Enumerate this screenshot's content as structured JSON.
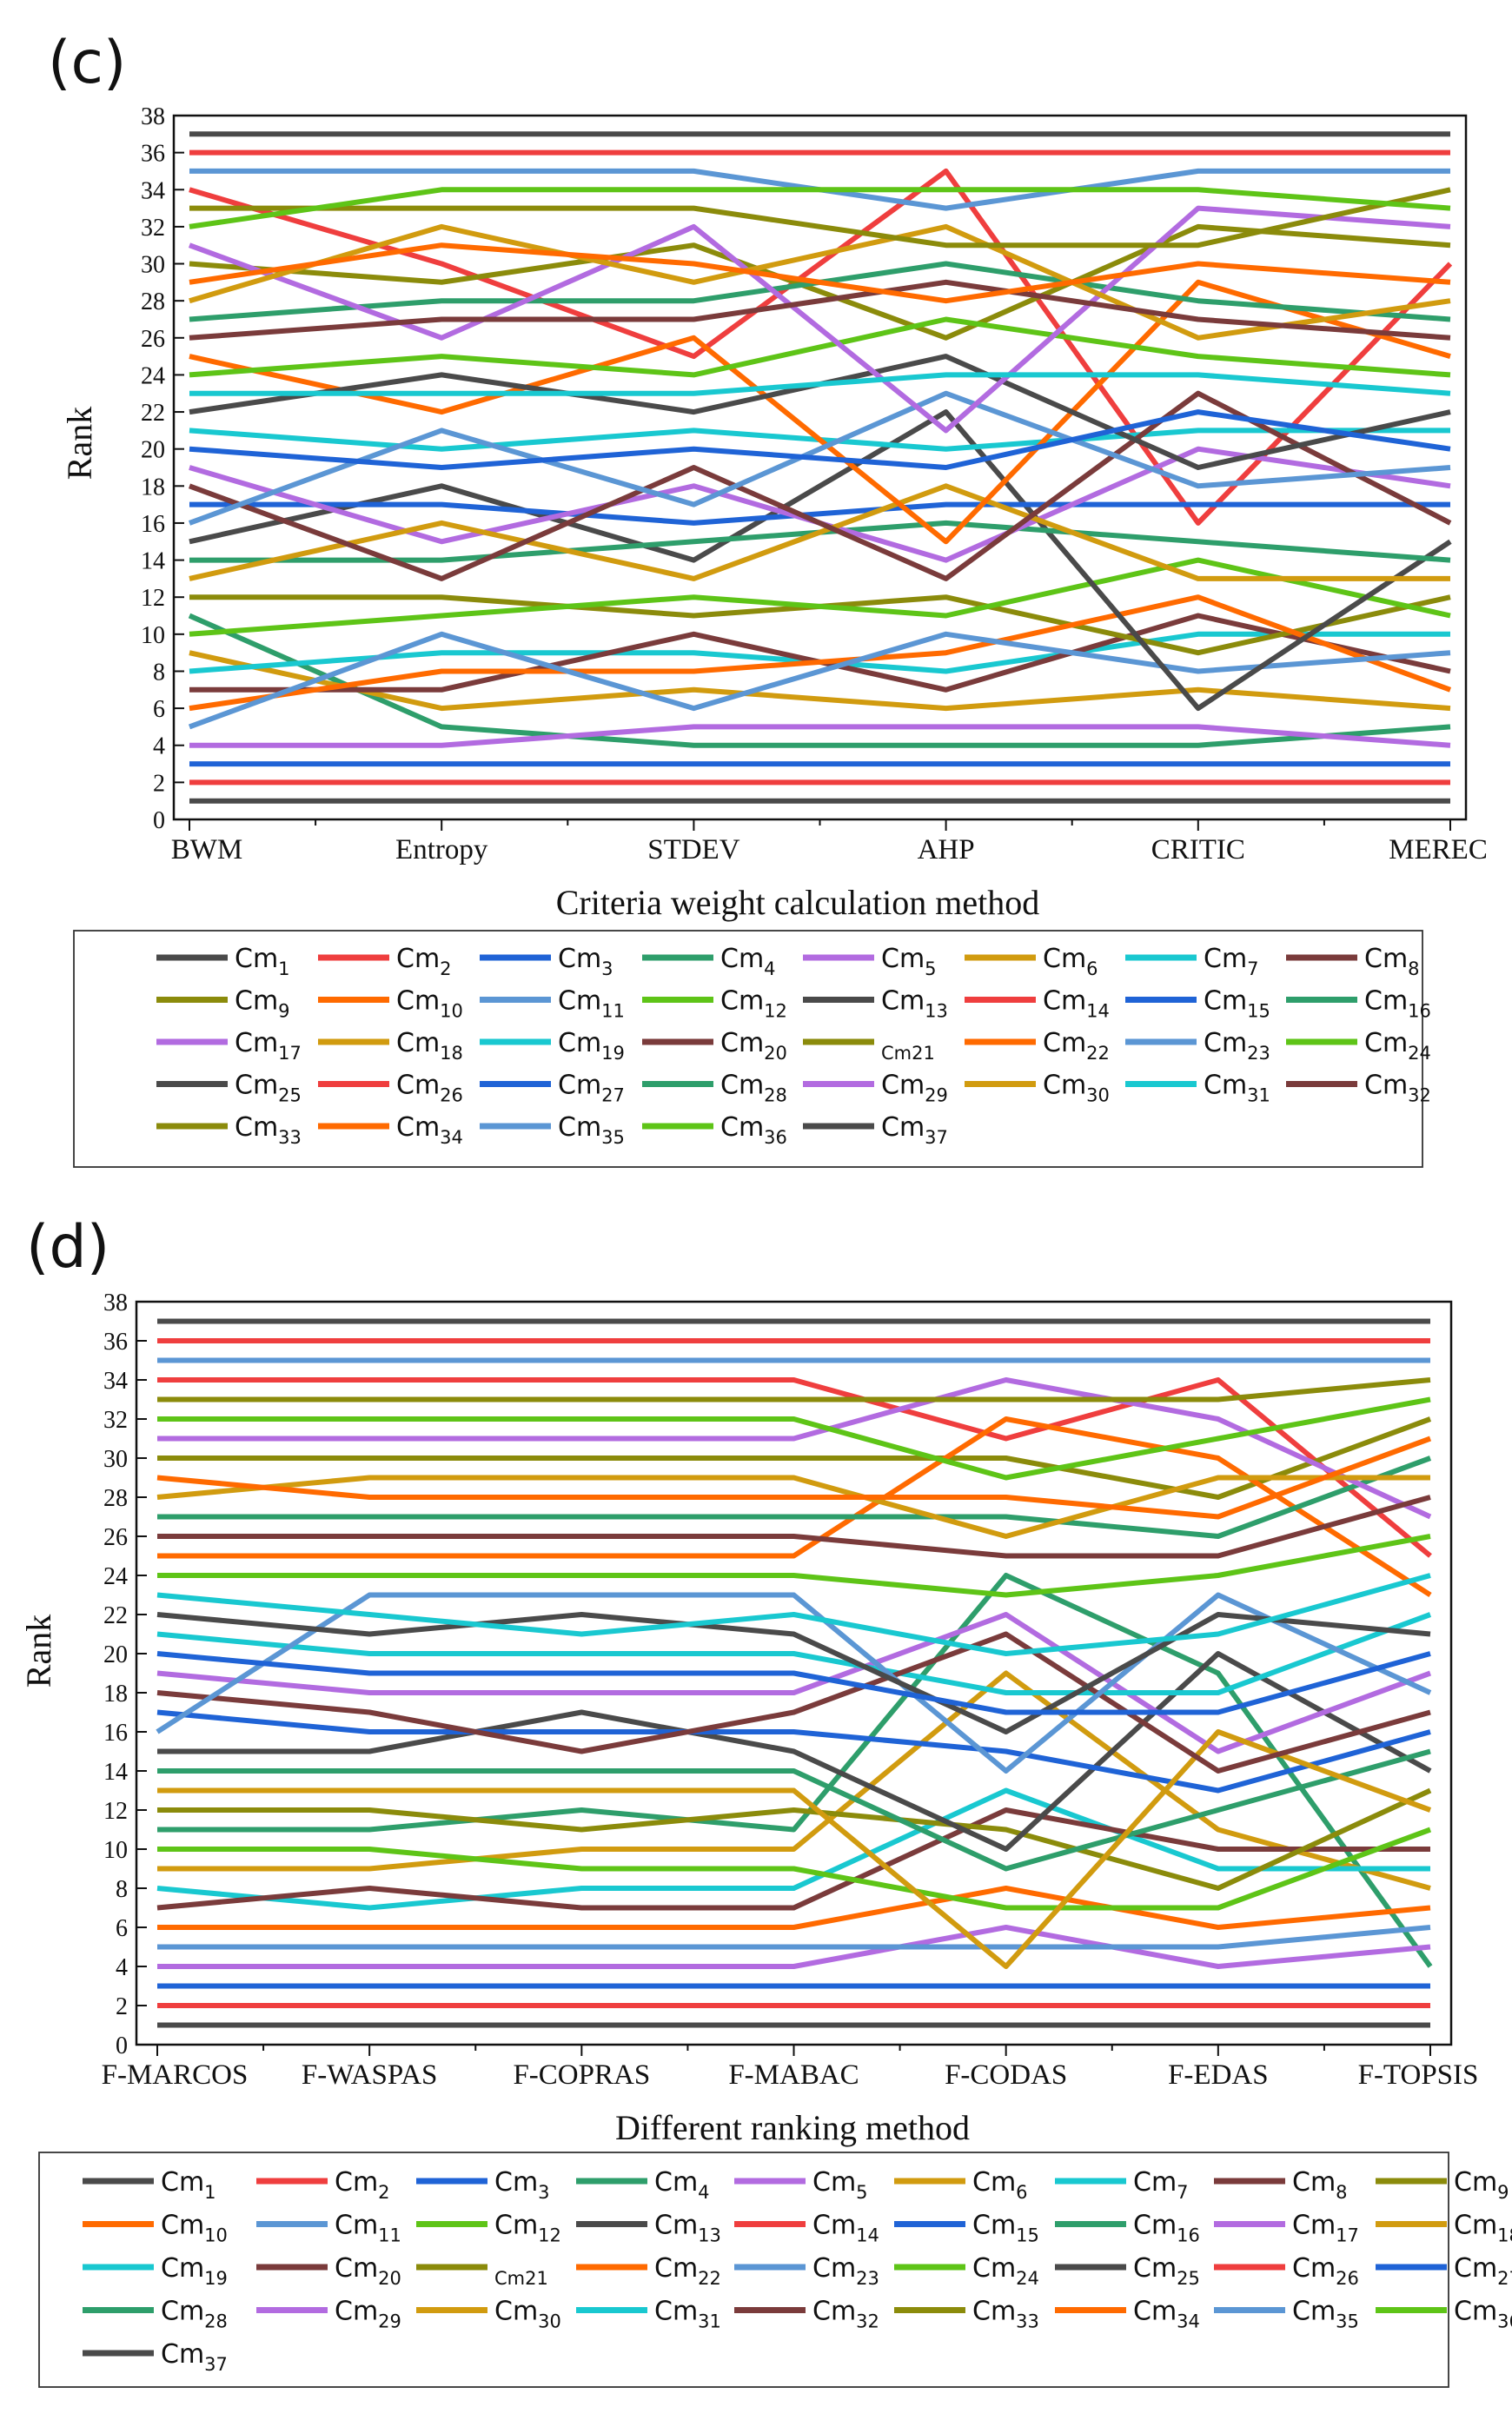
{
  "chart_data": [
    {
      "type": "line",
      "panel_label": "(c)",
      "xlabel": "Criteria weight calculation method",
      "ylabel": "Rank",
      "categories": [
        "BWM",
        "Entropy",
        "STDEV",
        "AHP",
        "CRITIC",
        "MEREC"
      ],
      "ylim": [
        0,
        38
      ],
      "yticks": [
        0,
        2,
        4,
        6,
        8,
        10,
        12,
        14,
        16,
        18,
        20,
        22,
        24,
        26,
        28,
        30,
        32,
        34,
        36,
        38
      ],
      "legend_location": "below",
      "series": [
        {
          "name": "Cm1",
          "base": "Cm",
          "sub": "1",
          "values": [
            1,
            1,
            1,
            1,
            1,
            1
          ]
        },
        {
          "name": "Cm2",
          "base": "Cm",
          "sub": "2",
          "values": [
            2,
            2,
            2,
            2,
            2,
            2
          ]
        },
        {
          "name": "Cm3",
          "base": "Cm",
          "sub": "3",
          "values": [
            3,
            3,
            3,
            3,
            3,
            3
          ]
        },
        {
          "name": "Cm4",
          "base": "Cm",
          "sub": "4",
          "values": [
            11,
            5,
            4,
            4,
            4,
            5
          ]
        },
        {
          "name": "Cm5",
          "base": "Cm",
          "sub": "5",
          "values": [
            4,
            4,
            5,
            5,
            5,
            4
          ]
        },
        {
          "name": "Cm6",
          "base": "Cm",
          "sub": "6",
          "values": [
            9,
            6,
            7,
            6,
            7,
            6
          ]
        },
        {
          "name": "Cm7",
          "base": "Cm",
          "sub": "7",
          "values": [
            8,
            9,
            9,
            8,
            10,
            10
          ]
        },
        {
          "name": "Cm8",
          "base": "Cm",
          "sub": "8",
          "values": [
            7,
            7,
            10,
            7,
            11,
            8
          ]
        },
        {
          "name": "Cm9",
          "base": "Cm",
          "sub": "9",
          "values": [
            12,
            12,
            11,
            12,
            9,
            12
          ]
        },
        {
          "name": "Cm10",
          "base": "Cm",
          "sub": "10",
          "values": [
            6,
            8,
            8,
            9,
            12,
            7
          ]
        },
        {
          "name": "Cm11",
          "base": "Cm",
          "sub": "11",
          "values": [
            5,
            10,
            6,
            10,
            8,
            9
          ]
        },
        {
          "name": "Cm12",
          "base": "Cm",
          "sub": "12",
          "values": [
            10,
            11,
            12,
            11,
            14,
            11
          ]
        },
        {
          "name": "Cm13",
          "base": "Cm",
          "sub": "13",
          "values": [
            15,
            18,
            14,
            22,
            6,
            15
          ]
        },
        {
          "name": "Cm14",
          "base": "Cm",
          "sub": "14",
          "values": [
            34,
            30,
            25,
            35,
            16,
            30
          ]
        },
        {
          "name": "Cm15",
          "base": "Cm",
          "sub": "15",
          "values": [
            17,
            17,
            16,
            17,
            17,
            17
          ]
        },
        {
          "name": "Cm16",
          "base": "Cm",
          "sub": "16",
          "values": [
            14,
            14,
            15,
            16,
            15,
            14
          ]
        },
        {
          "name": "Cm17",
          "base": "Cm",
          "sub": "17",
          "values": [
            19,
            15,
            18,
            14,
            20,
            18
          ]
        },
        {
          "name": "Cm18",
          "base": "Cm",
          "sub": "18",
          "values": [
            13,
            16,
            13,
            18,
            13,
            13
          ]
        },
        {
          "name": "Cm19",
          "base": "Cm",
          "sub": "19",
          "values": [
            21,
            20,
            21,
            20,
            21,
            21
          ]
        },
        {
          "name": "Cm20",
          "base": "Cm",
          "sub": "20",
          "values": [
            18,
            13,
            19,
            13,
            23,
            16
          ]
        },
        {
          "name": "Cm21",
          "base": "Cm21",
          "sub": "",
          "values": [
            30,
            29,
            31,
            26,
            32,
            31
          ]
        },
        {
          "name": "Cm22",
          "base": "Cm",
          "sub": "22",
          "values": [
            25,
            22,
            26,
            15,
            29,
            25
          ]
        },
        {
          "name": "Cm23",
          "base": "Cm",
          "sub": "23",
          "values": [
            16,
            21,
            17,
            23,
            18,
            19
          ]
        },
        {
          "name": "Cm24",
          "base": "Cm",
          "sub": "24",
          "values": [
            24,
            25,
            24,
            27,
            25,
            24
          ]
        },
        {
          "name": "Cm25",
          "base": "Cm",
          "sub": "25",
          "values": [
            22,
            24,
            22,
            25,
            19,
            22
          ]
        },
        {
          "name": "Cm26",
          "base": "Cm",
          "sub": "26",
          "values": [
            36,
            36,
            36,
            36,
            36,
            36
          ]
        },
        {
          "name": "Cm27",
          "base": "Cm",
          "sub": "27",
          "values": [
            20,
            19,
            20,
            19,
            22,
            20
          ]
        },
        {
          "name": "Cm28",
          "base": "Cm",
          "sub": "28",
          "values": [
            27,
            28,
            28,
            30,
            28,
            27
          ]
        },
        {
          "name": "Cm29",
          "base": "Cm",
          "sub": "29",
          "values": [
            31,
            26,
            32,
            21,
            33,
            32
          ]
        },
        {
          "name": "Cm30",
          "base": "Cm",
          "sub": "30",
          "values": [
            28,
            32,
            29,
            32,
            26,
            28
          ]
        },
        {
          "name": "Cm31",
          "base": "Cm",
          "sub": "31",
          "values": [
            23,
            23,
            23,
            24,
            24,
            23
          ]
        },
        {
          "name": "Cm32",
          "base": "Cm",
          "sub": "32",
          "values": [
            26,
            27,
            27,
            29,
            27,
            26
          ]
        },
        {
          "name": "Cm33",
          "base": "Cm",
          "sub": "33",
          "values": [
            33,
            33,
            33,
            31,
            31,
            34
          ]
        },
        {
          "name": "Cm34",
          "base": "Cm",
          "sub": "34",
          "values": [
            29,
            31,
            30,
            28,
            30,
            29
          ]
        },
        {
          "name": "Cm35",
          "base": "Cm",
          "sub": "35",
          "values": [
            35,
            35,
            35,
            33,
            35,
            35
          ]
        },
        {
          "name": "Cm36",
          "base": "Cm",
          "sub": "36",
          "values": [
            32,
            34,
            34,
            34,
            34,
            33
          ]
        },
        {
          "name": "Cm37",
          "base": "Cm",
          "sub": "37",
          "values": [
            37,
            37,
            37,
            37,
            37,
            37
          ]
        }
      ]
    },
    {
      "type": "line",
      "panel_label": "(d)",
      "xlabel": "Different ranking method",
      "ylabel": "Rank",
      "categories": [
        "F-MARCOS",
        "F-WASPAS",
        "F-COPRAS",
        "F-MABAC",
        "F-CODAS",
        "F-EDAS",
        "F-TOPSIS"
      ],
      "ylim": [
        0,
        38
      ],
      "yticks": [
        0,
        2,
        4,
        6,
        8,
        10,
        12,
        14,
        16,
        18,
        20,
        22,
        24,
        26,
        28,
        30,
        32,
        34,
        36,
        38
      ],
      "legend_location": "below",
      "series": [
        {
          "name": "Cm1",
          "base": "Cm",
          "sub": "1",
          "values": [
            1,
            1,
            1,
            1,
            1,
            1,
            1
          ]
        },
        {
          "name": "Cm2",
          "base": "Cm",
          "sub": "2",
          "values": [
            2,
            2,
            2,
            2,
            2,
            2,
            2
          ]
        },
        {
          "name": "Cm3",
          "base": "Cm",
          "sub": "3",
          "values": [
            3,
            3,
            3,
            3,
            3,
            3,
            3
          ]
        },
        {
          "name": "Cm4",
          "base": "Cm",
          "sub": "4",
          "values": [
            11,
            11,
            12,
            11,
            24,
            19,
            4
          ]
        },
        {
          "name": "Cm5",
          "base": "Cm",
          "sub": "5",
          "values": [
            4,
            4,
            4,
            4,
            6,
            4,
            5
          ]
        },
        {
          "name": "Cm6",
          "base": "Cm",
          "sub": "6",
          "values": [
            9,
            9,
            10,
            10,
            19,
            11,
            8
          ]
        },
        {
          "name": "Cm7",
          "base": "Cm",
          "sub": "7",
          "values": [
            8,
            7,
            8,
            8,
            13,
            9,
            9
          ]
        },
        {
          "name": "Cm8",
          "base": "Cm",
          "sub": "8",
          "values": [
            7,
            8,
            7,
            7,
            12,
            10,
            10
          ]
        },
        {
          "name": "Cm9",
          "base": "Cm",
          "sub": "9",
          "values": [
            12,
            12,
            11,
            12,
            11,
            8,
            13
          ]
        },
        {
          "name": "Cm10",
          "base": "Cm",
          "sub": "10",
          "values": [
            6,
            6,
            6,
            6,
            8,
            6,
            7
          ]
        },
        {
          "name": "Cm11",
          "base": "Cm",
          "sub": "11",
          "values": [
            5,
            5,
            5,
            5,
            5,
            5,
            6
          ]
        },
        {
          "name": "Cm12",
          "base": "Cm",
          "sub": "12",
          "values": [
            10,
            10,
            9,
            9,
            7,
            7,
            11
          ]
        },
        {
          "name": "Cm13",
          "base": "Cm",
          "sub": "13",
          "values": [
            15,
            15,
            17,
            15,
            10,
            20,
            14
          ]
        },
        {
          "name": "Cm14",
          "base": "Cm",
          "sub": "14",
          "values": [
            34,
            34,
            34,
            34,
            31,
            34,
            25
          ]
        },
        {
          "name": "Cm15",
          "base": "Cm",
          "sub": "15",
          "values": [
            17,
            16,
            16,
            16,
            15,
            13,
            16
          ]
        },
        {
          "name": "Cm16",
          "base": "Cm",
          "sub": "16",
          "values": [
            14,
            14,
            14,
            14,
            9,
            12,
            15
          ]
        },
        {
          "name": "Cm17",
          "base": "Cm",
          "sub": "17",
          "values": [
            19,
            18,
            18,
            18,
            22,
            15,
            19
          ]
        },
        {
          "name": "Cm18",
          "base": "Cm",
          "sub": "18",
          "values": [
            13,
            13,
            13,
            13,
            4,
            16,
            12
          ]
        },
        {
          "name": "Cm19",
          "base": "Cm",
          "sub": "19",
          "values": [
            21,
            20,
            20,
            20,
            18,
            18,
            22
          ]
        },
        {
          "name": "Cm20",
          "base": "Cm",
          "sub": "20",
          "values": [
            18,
            17,
            15,
            17,
            21,
            14,
            17
          ]
        },
        {
          "name": "Cm21",
          "base": "Cm21",
          "sub": "",
          "values": [
            30,
            30,
            30,
            30,
            30,
            28,
            32
          ]
        },
        {
          "name": "Cm22",
          "base": "Cm",
          "sub": "22",
          "values": [
            25,
            25,
            25,
            25,
            32,
            30,
            23
          ]
        },
        {
          "name": "Cm23",
          "base": "Cm",
          "sub": "23",
          "values": [
            16,
            23,
            23,
            23,
            14,
            23,
            18
          ]
        },
        {
          "name": "Cm24",
          "base": "Cm",
          "sub": "24",
          "values": [
            24,
            24,
            24,
            24,
            23,
            24,
            26
          ]
        },
        {
          "name": "Cm25",
          "base": "Cm",
          "sub": "25",
          "values": [
            22,
            21,
            22,
            21,
            16,
            22,
            21
          ]
        },
        {
          "name": "Cm26",
          "base": "Cm",
          "sub": "26",
          "values": [
            36,
            36,
            36,
            36,
            36,
            36,
            36
          ]
        },
        {
          "name": "Cm27",
          "base": "Cm",
          "sub": "27",
          "values": [
            20,
            19,
            19,
            19,
            17,
            17,
            20
          ]
        },
        {
          "name": "Cm28",
          "base": "Cm",
          "sub": "28",
          "values": [
            27,
            27,
            27,
            27,
            27,
            26,
            30
          ]
        },
        {
          "name": "Cm29",
          "base": "Cm",
          "sub": "29",
          "values": [
            31,
            31,
            31,
            31,
            34,
            32,
            27
          ]
        },
        {
          "name": "Cm30",
          "base": "Cm",
          "sub": "30",
          "values": [
            28,
            29,
            29,
            29,
            26,
            29,
            29
          ]
        },
        {
          "name": "Cm31",
          "base": "Cm",
          "sub": "31",
          "values": [
            23,
            22,
            21,
            22,
            20,
            21,
            24
          ]
        },
        {
          "name": "Cm32",
          "base": "Cm",
          "sub": "32",
          "values": [
            26,
            26,
            26,
            26,
            25,
            25,
            28
          ]
        },
        {
          "name": "Cm33",
          "base": "Cm",
          "sub": "33",
          "values": [
            33,
            33,
            33,
            33,
            33,
            33,
            34
          ]
        },
        {
          "name": "Cm34",
          "base": "Cm",
          "sub": "34",
          "values": [
            29,
            28,
            28,
            28,
            28,
            27,
            31
          ]
        },
        {
          "name": "Cm35",
          "base": "Cm",
          "sub": "35",
          "values": [
            35,
            35,
            35,
            35,
            35,
            35,
            35
          ]
        },
        {
          "name": "Cm36",
          "base": "Cm",
          "sub": "36",
          "values": [
            32,
            32,
            32,
            32,
            29,
            31,
            33
          ]
        },
        {
          "name": "Cm37",
          "base": "Cm",
          "sub": "37",
          "values": [
            37,
            37,
            37,
            37,
            37,
            37,
            37
          ]
        }
      ]
    }
  ],
  "palette": [
    "#4a4a4a",
    "#ef3e3e",
    "#1f63d6",
    "#2e9e6b",
    "#b26be0",
    "#d19b0f",
    "#19c8d0",
    "#7a3b3b",
    "#8b8b0b",
    "#ff6a00",
    "#5b96d4",
    "#5ec417"
  ]
}
